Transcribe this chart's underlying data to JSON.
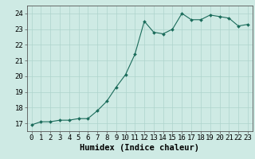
{
  "x": [
    0,
    1,
    2,
    3,
    4,
    5,
    6,
    7,
    8,
    9,
    10,
    11,
    12,
    13,
    14,
    15,
    16,
    17,
    18,
    19,
    20,
    21,
    22,
    23
  ],
  "y": [
    16.9,
    17.1,
    17.1,
    17.2,
    17.2,
    17.3,
    17.3,
    17.8,
    18.4,
    19.3,
    20.1,
    21.4,
    23.5,
    22.8,
    22.7,
    23.0,
    24.0,
    23.6,
    23.6,
    23.9,
    23.8,
    23.7,
    23.2,
    23.3
  ],
  "line_color": "#1a6b5a",
  "marker_color": "#1a6b5a",
  "bg_color": "#ceeae4",
  "grid_color": "#aed4cc",
  "xlabel": "Humidex (Indice chaleur)",
  "ylim": [
    16.5,
    24.5
  ],
  "xlim": [
    -0.5,
    23.5
  ],
  "yticks": [
    17,
    18,
    19,
    20,
    21,
    22,
    23,
    24
  ],
  "xticks": [
    0,
    1,
    2,
    3,
    4,
    5,
    6,
    7,
    8,
    9,
    10,
    11,
    12,
    13,
    14,
    15,
    16,
    17,
    18,
    19,
    20,
    21,
    22,
    23
  ],
  "xlabel_fontsize": 7.5,
  "tick_fontsize": 6.5
}
